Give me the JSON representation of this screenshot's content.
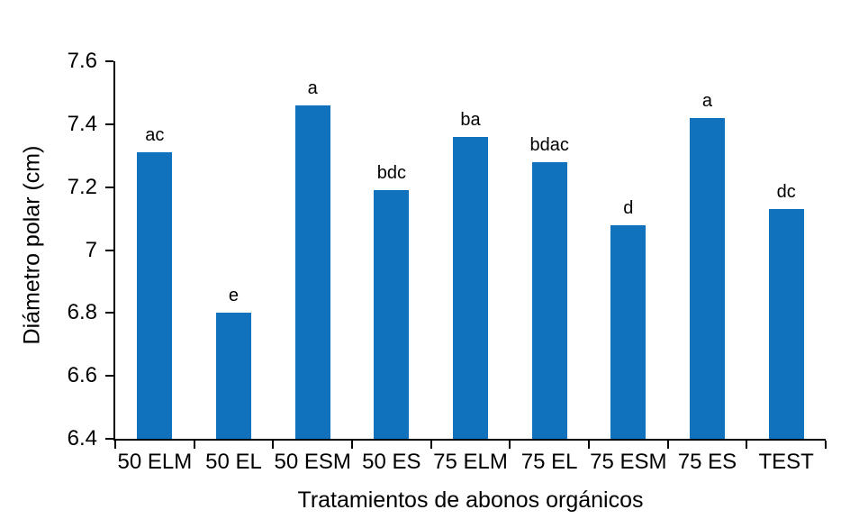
{
  "chart_data": {
    "type": "bar",
    "title": "",
    "xlabel": "Tratamientos de abonos orgánicos",
    "ylabel": "Diámetro polar (cm)",
    "categories": [
      "50 ELM",
      "50 EL",
      "50 ESM",
      "50 ES",
      "75 ELM",
      "75 EL",
      "75 ESM",
      "75 ES",
      "TEST"
    ],
    "values": [
      7.31,
      6.8,
      7.46,
      7.19,
      7.36,
      7.28,
      7.08,
      7.42,
      7.13
    ],
    "bar_labels": [
      "ac",
      "e",
      "a",
      "bdc",
      "ba",
      "bdac",
      "d",
      "a",
      "dc"
    ],
    "ylim": [
      6.4,
      7.6
    ],
    "y_ticks": [
      {
        "label": "7.6",
        "value": 7.6
      },
      {
        "label": "7.4",
        "value": 7.4
      },
      {
        "label": "7.2",
        "value": 7.2
      },
      {
        "label": "7",
        "value": 7.0
      },
      {
        "label": "6.8",
        "value": 6.8
      },
      {
        "label": "6.6",
        "value": 6.6
      },
      {
        "label": "6.4",
        "value": 6.4
      }
    ],
    "grid": false,
    "legend": "none",
    "bar_color": "#1072BC",
    "axis_color": "#000000"
  }
}
